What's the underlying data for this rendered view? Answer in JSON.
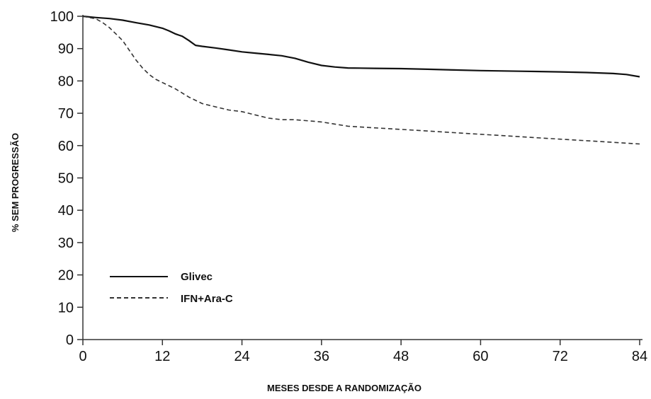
{
  "chart_data": {
    "type": "line",
    "title": "",
    "xlabel": "MESES DESDE A RANDOMIZAÇÃO",
    "ylabel": "% SEM PROGRESSÃO",
    "xlim": [
      0,
      84
    ],
    "ylim": [
      0,
      100
    ],
    "xticks": [
      0,
      12,
      24,
      36,
      48,
      60,
      72,
      84
    ],
    "yticks": [
      0,
      10,
      20,
      30,
      40,
      50,
      60,
      70,
      80,
      90,
      100
    ],
    "grid": false,
    "legend_position": "bottom-left",
    "series": [
      {
        "name": "Glivec",
        "style": "solid",
        "color": "#111111",
        "x": [
          0,
          2,
          4,
          6,
          8,
          10,
          12,
          13,
          14,
          15,
          16,
          17,
          18,
          20,
          22,
          24,
          26,
          28,
          30,
          32,
          34,
          36,
          38,
          40,
          44,
          48,
          52,
          56,
          60,
          66,
          72,
          76,
          80,
          82,
          84
        ],
        "y": [
          100,
          99.6,
          99.3,
          98.8,
          98,
          97.3,
          96.3,
          95.5,
          94.5,
          93.8,
          92.5,
          91,
          90.7,
          90.2,
          89.6,
          89,
          88.6,
          88.2,
          87.8,
          87,
          85.8,
          84.8,
          84.3,
          84,
          83.9,
          83.8,
          83.6,
          83.4,
          83.2,
          83,
          82.8,
          82.6,
          82.3,
          82,
          81.3
        ]
      },
      {
        "name": "IFN+Ara-C",
        "style": "dashed",
        "color": "#333333",
        "x": [
          0,
          2,
          3,
          4,
          5,
          6,
          7,
          8,
          9,
          10,
          11,
          12,
          14,
          16,
          18,
          20,
          22,
          24,
          28,
          30,
          32,
          36,
          40,
          44,
          48,
          52,
          56,
          60,
          64,
          68,
          72,
          76,
          80,
          84
        ],
        "y": [
          100,
          99.2,
          98,
          96.5,
          94.5,
          92.5,
          89.5,
          86.5,
          84,
          82,
          80.5,
          79.5,
          77.5,
          75,
          73,
          72,
          71,
          70.5,
          68.5,
          68,
          68,
          67.3,
          66,
          65.5,
          65,
          64.5,
          64,
          63.5,
          63,
          62.5,
          62,
          61.5,
          61,
          60.5
        ]
      }
    ]
  }
}
